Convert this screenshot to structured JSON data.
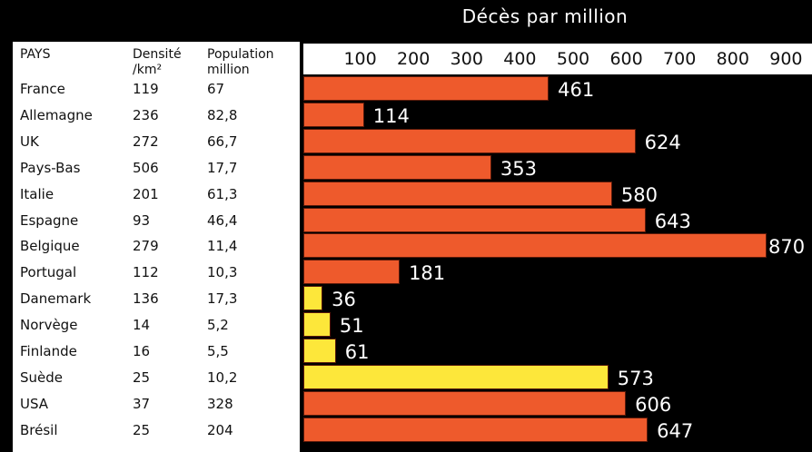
{
  "title": "Décès par million",
  "table": {
    "headers": {
      "country": "PAYS",
      "density_line1": "Densité",
      "density_line2": "/km²",
      "population_line1": "Population",
      "population_line2": "million"
    },
    "rows": [
      {
        "country": "France",
        "density": "119",
        "population": "67"
      },
      {
        "country": "Allemagne",
        "density": "236",
        "population": "82,8"
      },
      {
        "country": "UK",
        "density": "272",
        "population": "66,7"
      },
      {
        "country": "Pays-Bas",
        "density": "506",
        "population": "17,7"
      },
      {
        "country": "Italie",
        "density": "201",
        "population": "61,3"
      },
      {
        "country": "Espagne",
        "density": "93",
        "population": "46,4"
      },
      {
        "country": "Belgique",
        "density": "279",
        "population": "11,4"
      },
      {
        "country": "Portugal",
        "density": "112",
        "population": "10,3"
      },
      {
        "country": "Danemark",
        "density": "136",
        "population": "17,3"
      },
      {
        "country": "Norvège",
        "density": "14",
        "population": "5,2"
      },
      {
        "country": "Finlande",
        "density": "16",
        "population": "5,5"
      },
      {
        "country": "Suède",
        "density": "25",
        "population": "10,2"
      },
      {
        "country": "USA",
        "density": "37",
        "population": "328"
      },
      {
        "country": "Brésil",
        "density": "25",
        "population": "204"
      }
    ]
  },
  "colors": {
    "bar_red": "#ee5a2c",
    "bar_yellow": "#fde73a",
    "background": "#000000",
    "panel": "#ffffff"
  },
  "chart_data": {
    "type": "bar",
    "orientation": "horizontal",
    "title": "Décès par million",
    "categories": [
      "France",
      "Allemagne",
      "UK",
      "Pays-Bas",
      "Italie",
      "Espagne",
      "Belgique",
      "Portugal",
      "Danemark",
      "Norvège",
      "Finlande",
      "Suède",
      "USA",
      "Brésil"
    ],
    "values": [
      461,
      114,
      624,
      353,
      580,
      643,
      870,
      181,
      36,
      51,
      61,
      573,
      606,
      647
    ],
    "value_labels": [
      "461",
      "114",
      "624",
      "353",
      "580",
      "643",
      "870",
      "181",
      "36",
      "51",
      "61",
      "573",
      "606",
      "647"
    ],
    "highlight": [
      false,
      false,
      false,
      false,
      false,
      false,
      false,
      false,
      true,
      true,
      true,
      true,
      false,
      false
    ],
    "xticks": [
      100,
      200,
      300,
      400,
      500,
      600,
      700,
      800,
      900
    ],
    "xtick_labels": [
      "100",
      "200",
      "300",
      "400",
      "500",
      "600",
      "700",
      "800",
      "900"
    ],
    "xlim": [
      0,
      960
    ],
    "axis_position": "top",
    "grid": false,
    "legend": "none"
  }
}
